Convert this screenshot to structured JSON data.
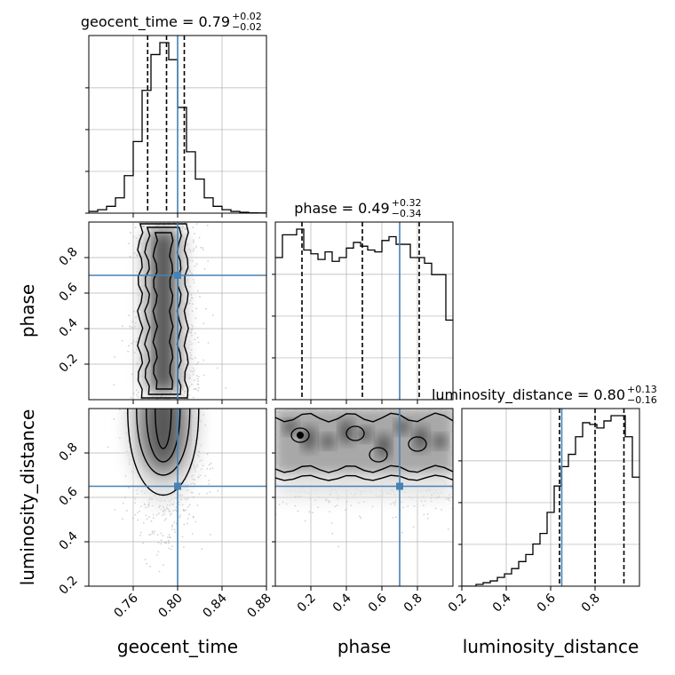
{
  "chart_data": {
    "type": "corner",
    "parameters": [
      "geocent_time",
      "phase",
      "luminosity_distance"
    ],
    "axis_labels": {
      "geocent_time": "geocent_time",
      "phase": "phase",
      "luminosity_distance": "luminosity_distance"
    },
    "ranges": {
      "geocent_time": [
        0.72,
        0.88
      ],
      "phase": [
        0.0,
        1.0
      ],
      "luminosity_distance": [
        0.2,
        1.0
      ]
    },
    "ticks": {
      "geocent_time": [
        0.76,
        0.8,
        0.84,
        0.88
      ],
      "phase": [
        0.2,
        0.4,
        0.6,
        0.8
      ],
      "phase_y": [
        0.2,
        0.4,
        0.6,
        0.8
      ],
      "luminosity_distance": [
        0.2,
        0.4,
        0.6,
        0.8
      ],
      "luminosity_distance_y": [
        0.2,
        0.4,
        0.6,
        0.8
      ]
    },
    "tick_labels": {
      "geocent_time": [
        "0.76",
        "0.80",
        "0.84",
        "0.88"
      ],
      "phase": [
        "0.2",
        "0.4",
        "0.6",
        "0.8"
      ],
      "luminosity_distance": [
        "0.2",
        "0.4",
        "0.6",
        "0.8"
      ]
    },
    "truths": {
      "geocent_time": 0.8,
      "phase": 0.7,
      "luminosity_distance": 0.65
    },
    "summaries": [
      {
        "param": "geocent_time",
        "name": "geocent_time",
        "median": "0.79",
        "plus": "+0.02",
        "minus": "−0.02",
        "quantiles": [
          0.773,
          0.79,
          0.806
        ]
      },
      {
        "param": "phase",
        "name": "phase",
        "median": "0.49",
        "plus": "+0.32",
        "minus": "−0.34",
        "quantiles": [
          0.15,
          0.49,
          0.81
        ]
      },
      {
        "param": "luminosity_distance",
        "name": "luminosity_distance",
        "median": "0.80",
        "plus": "+0.13",
        "minus": "−0.16",
        "quantiles": [
          0.64,
          0.8,
          0.93
        ]
      }
    ],
    "histograms": {
      "geocent_time": {
        "bin_start": 0.72,
        "bin_width": 0.008,
        "counts": [
          0.01,
          0.02,
          0.04,
          0.09,
          0.22,
          0.42,
          0.72,
          0.93,
          1.0,
          0.9,
          0.62,
          0.36,
          0.2,
          0.09,
          0.04,
          0.02,
          0.01,
          0.005,
          0.002,
          0.001
        ]
      },
      "phase": {
        "bin_start": 0.0,
        "bin_width": 0.04,
        "counts": [
          0.75,
          0.87,
          0.87,
          0.9,
          0.79,
          0.77,
          0.74,
          0.78,
          0.73,
          0.75,
          0.8,
          0.83,
          0.81,
          0.79,
          0.78,
          0.84,
          0.86,
          0.82,
          0.82,
          0.75,
          0.75,
          0.72,
          0.66,
          0.66,
          0.42
        ]
      },
      "luminosity_distance": {
        "bin_start": 0.2,
        "bin_width": 0.032,
        "counts": [
          0.0,
          0.0,
          0.01,
          0.02,
          0.03,
          0.05,
          0.07,
          0.1,
          0.14,
          0.18,
          0.24,
          0.3,
          0.42,
          0.57,
          0.68,
          0.75,
          0.85,
          0.93,
          0.92,
          0.9,
          0.94,
          0.97,
          0.97,
          0.85,
          0.62
        ]
      }
    },
    "grid": true,
    "colors": {
      "truth": "#4682b4",
      "line": "#000000",
      "density": "#000000",
      "grid": "#b0b0b0"
    }
  }
}
